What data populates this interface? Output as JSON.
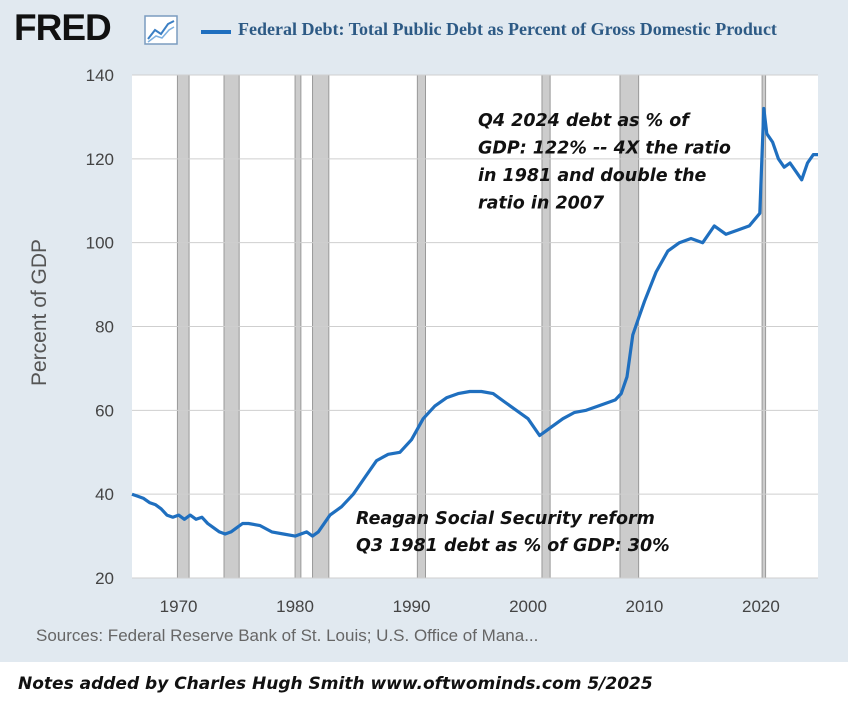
{
  "header": {
    "logo_text": "FRED",
    "logo_icon": "line-chart-icon",
    "series_title": "Federal Debt: Total Public Debt as Percent of Gross Domestic Product"
  },
  "colors": {
    "series": "#1f6fbf",
    "recession": "#cccccc",
    "frame": "#e1e9f0",
    "plot_bg": "#ffffff"
  },
  "chart_data": {
    "type": "line",
    "xlabel": "",
    "ylabel": "Percent of GDP",
    "xlim": [
      1966,
      2024.9
    ],
    "ylim": [
      20,
      140
    ],
    "x_ticks": [
      "1970",
      "1980",
      "1990",
      "2000",
      "2010",
      "2020"
    ],
    "y_ticks": [
      "20",
      "40",
      "60",
      "80",
      "100",
      "120",
      "140"
    ],
    "grid": true,
    "recessions": [
      [
        1969.9,
        1970.9
      ],
      [
        1973.9,
        1975.2
      ],
      [
        1980.0,
        1980.5
      ],
      [
        1981.5,
        1982.9
      ],
      [
        1990.5,
        1991.2
      ],
      [
        2001.2,
        2001.9
      ],
      [
        2007.9,
        2009.5
      ],
      [
        2020.1,
        2020.4
      ]
    ],
    "series": [
      {
        "x": [
          1966.0,
          1966.5,
          1967.0,
          1967.5,
          1968.0,
          1968.5,
          1969.0,
          1969.5,
          1970.0,
          1970.5,
          1971.0,
          1971.5,
          1972.0,
          1972.5,
          1973.0,
          1973.5,
          1974.0,
          1974.5,
          1975.0,
          1975.5,
          1976.0,
          1977.0,
          1978.0,
          1979.0,
          1980.0,
          1980.5,
          1981.0,
          1981.5,
          1982.0,
          1983.0,
          1984.0,
          1985.0,
          1986.0,
          1987.0,
          1988.0,
          1989.0,
          1990.0,
          1991.0,
          1992.0,
          1993.0,
          1994.0,
          1995.0,
          1996.0,
          1997.0,
          1998.0,
          1999.0,
          2000.0,
          2001.0,
          2001.5,
          2002.0,
          2003.0,
          2004.0,
          2005.0,
          2006.0,
          2007.0,
          2007.5,
          2008.0,
          2008.5,
          2009.0,
          2009.5,
          2010.0,
          2011.0,
          2012.0,
          2013.0,
          2014.0,
          2015.0,
          2016.0,
          2017.0,
          2018.0,
          2019.0,
          2019.9,
          2020.25,
          2020.5,
          2021.0,
          2021.5,
          2022.0,
          2022.5,
          2023.0,
          2023.5,
          2024.0,
          2024.5,
          2024.9
        ],
        "values": [
          40,
          39.5,
          39,
          38,
          37.5,
          36.5,
          35,
          34.5,
          35,
          34,
          35,
          34,
          34.5,
          33,
          32,
          31,
          30.5,
          31,
          32,
          33,
          33,
          32.5,
          31,
          30.5,
          30,
          30.5,
          31,
          30,
          31,
          35,
          37,
          40,
          44,
          48,
          49.5,
          50,
          53,
          58,
          61,
          63,
          64,
          64.5,
          64.5,
          64,
          62,
          60,
          58,
          54,
          55,
          56,
          58,
          59.5,
          60,
          61,
          62,
          62.5,
          64,
          68,
          78,
          82,
          86,
          93,
          98,
          100,
          101,
          100,
          104,
          102,
          103,
          104,
          107,
          132,
          126,
          124,
          120,
          118,
          119,
          117,
          115,
          119,
          121,
          121
        ]
      }
    ],
    "annotations": [
      {
        "lines": [
          "Q4 2024 debt as % of",
          "GDP: 122% -- 4X the ratio",
          "in 1981 and double the",
          "ratio in 2007"
        ]
      },
      {
        "lines": [
          "Reagan Social Security reform",
          "Q3 1981 debt as % of GDP:  30%"
        ]
      }
    ]
  },
  "sources_text": "Sources: Federal Reserve Bank of St. Louis; U.S. Office of Mana...",
  "footer_note": "Notes added by Charles Hugh Smith   www.oftwominds.com  5/2025"
}
